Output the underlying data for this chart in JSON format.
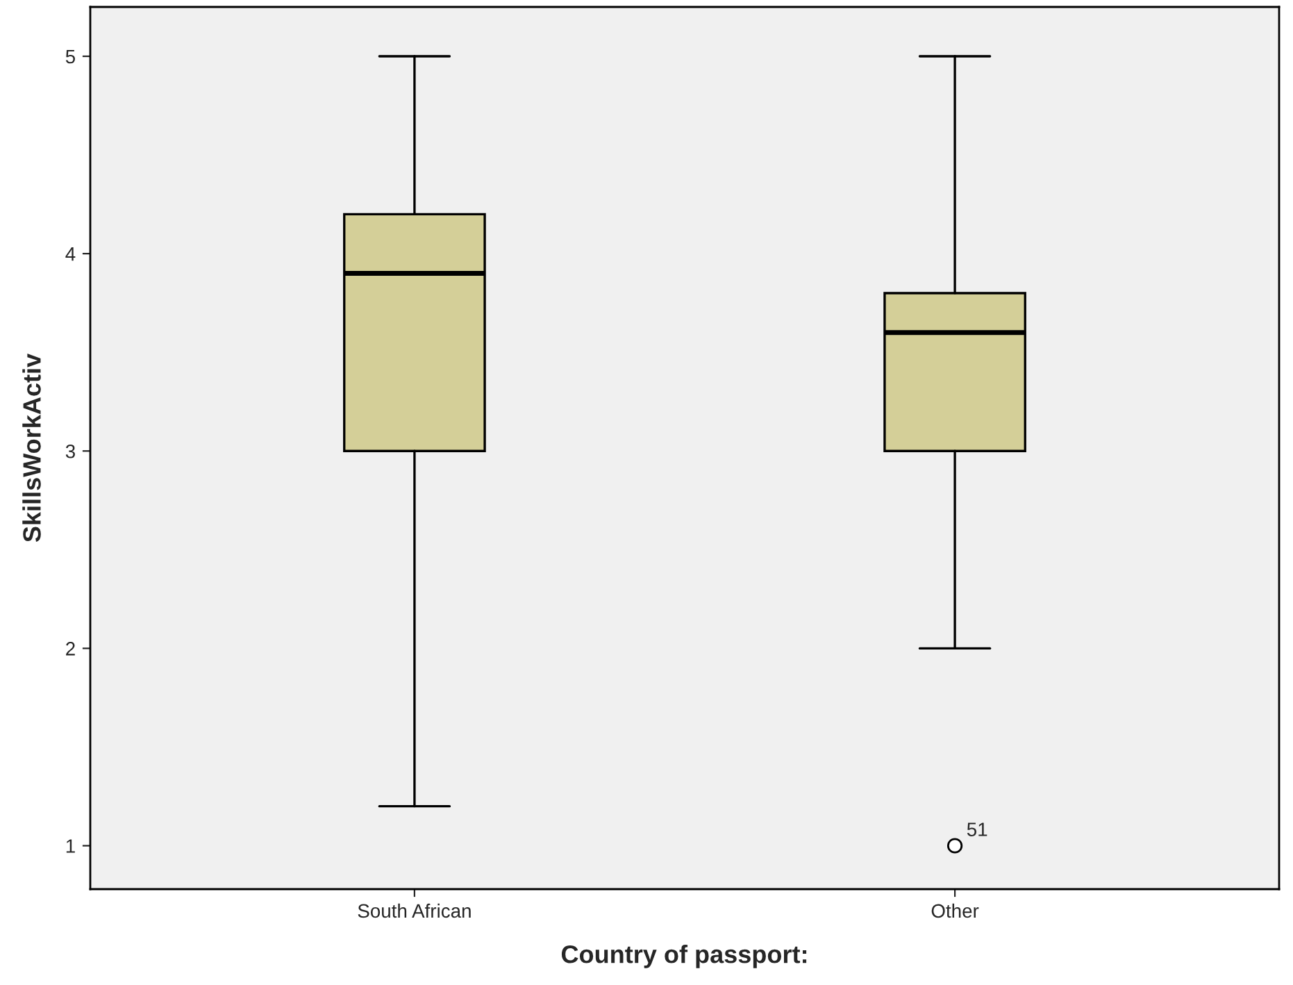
{
  "chart_data": {
    "type": "box",
    "xlabel": "Country of passport:",
    "ylabel": "SkillsWorkActiv",
    "categories": [
      "South African",
      "Other"
    ],
    "boxes": [
      {
        "low": 1.2,
        "q1": 3.0,
        "median": 3.9,
        "q3": 4.2,
        "high": 5.0
      },
      {
        "low": 2.0,
        "q1": 3.0,
        "median": 3.6,
        "q3": 3.8,
        "high": 5.0,
        "outliers": [
          1.0
        ]
      }
    ],
    "color": "#d4cf98",
    "ylim": [
      0.78,
      5.25
    ],
    "yticks": [
      1,
      2,
      3,
      4,
      5
    ],
    "grid": false,
    "annotations": [
      "51"
    ]
  }
}
